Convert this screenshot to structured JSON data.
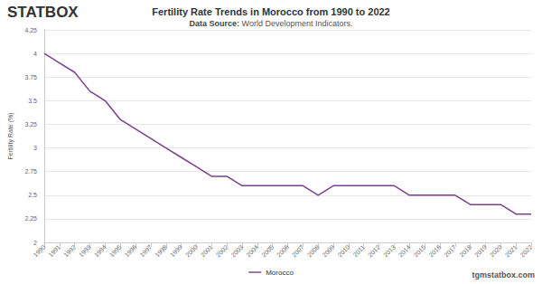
{
  "chart_data": {
    "type": "line",
    "title": "Fertility Rate Trends in Morocco from 1990 to 2022",
    "subtitle": "Data Source: World Development Indicators.",
    "y_label": "Fertility Rate (%)",
    "logo": "STATBOX",
    "watermark": "tgmstatbox.com",
    "categories": [
      "1990",
      "1991",
      "1992",
      "1993",
      "1994",
      "1995",
      "1996",
      "1997",
      "1998",
      "1999",
      "2000",
      "2001",
      "2002",
      "2003",
      "2004",
      "2005",
      "2006",
      "2007",
      "2008",
      "2009",
      "2010",
      "2011",
      "2012",
      "2013",
      "2014",
      "2015",
      "2016",
      "2017",
      "2018",
      "2019",
      "2020",
      "2021",
      "2022"
    ],
    "series": [
      {
        "name": "Morocco",
        "color": "#7e3f8f",
        "values": [
          4.0,
          3.9,
          3.8,
          3.6,
          3.5,
          3.3,
          3.2,
          3.1,
          3.0,
          2.9,
          2.8,
          2.7,
          2.7,
          2.6,
          2.6,
          2.6,
          2.6,
          2.6,
          2.5,
          2.6,
          2.6,
          2.6,
          2.6,
          2.6,
          2.5,
          2.5,
          2.5,
          2.5,
          2.4,
          2.4,
          2.4,
          2.3,
          2.3
        ]
      }
    ],
    "ylim": [
      2,
      4.25
    ],
    "yticks": [
      2,
      2.25,
      2.5,
      2.75,
      3,
      3.25,
      3.5,
      3.75,
      4,
      4.25
    ],
    "grid": true,
    "legend": "bottom",
    "marker": "none"
  }
}
